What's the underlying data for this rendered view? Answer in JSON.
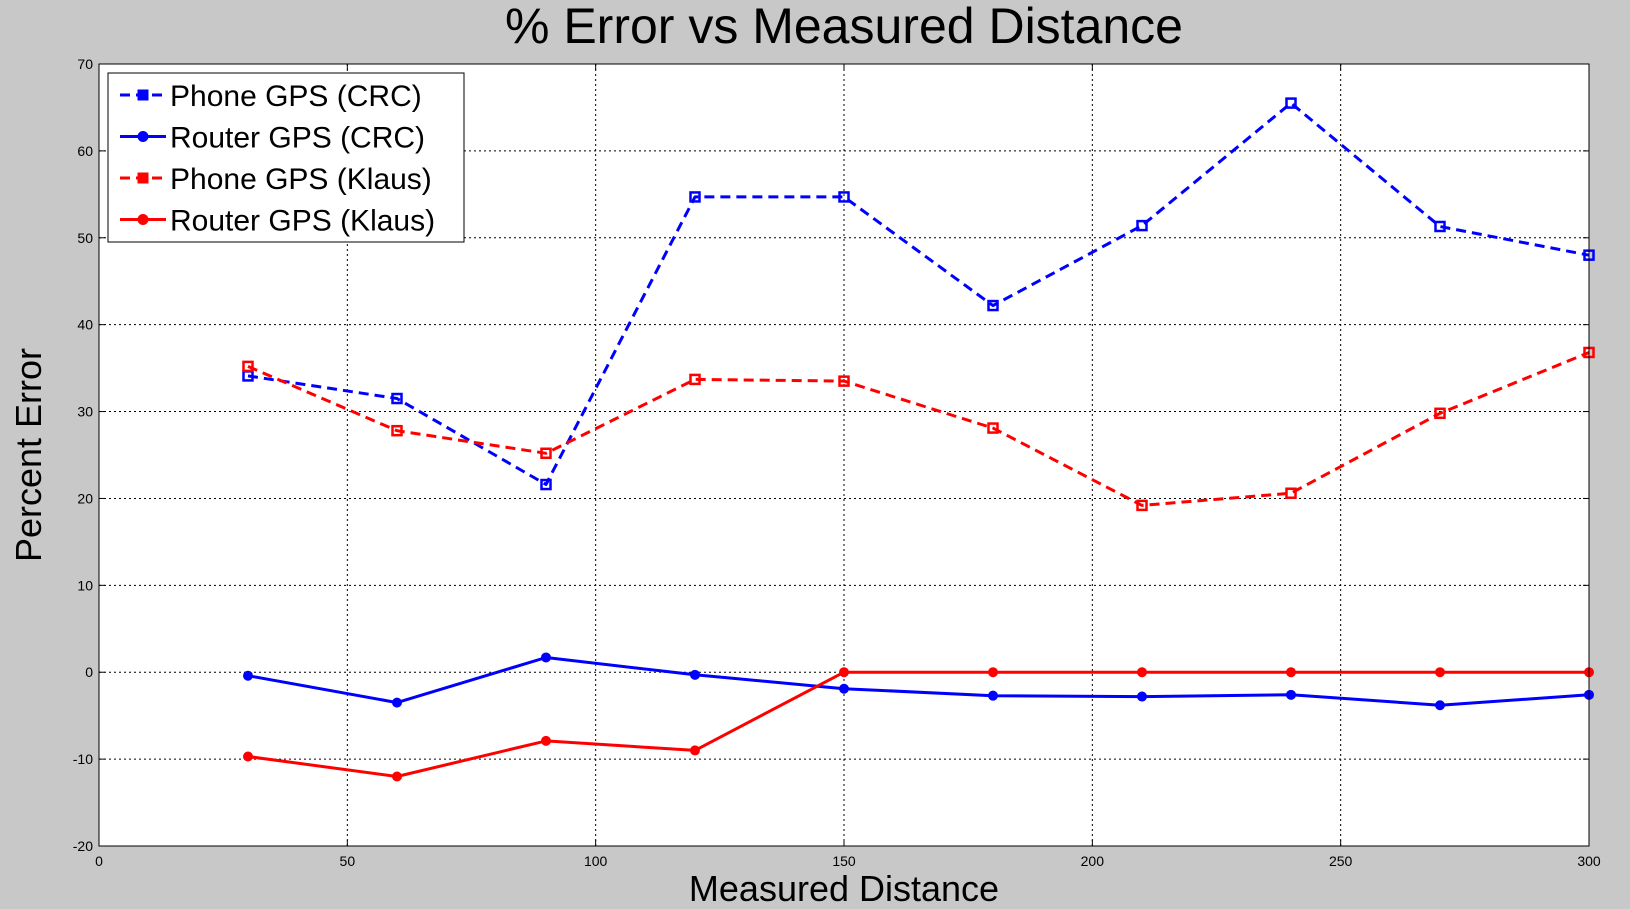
{
  "chart_data": {
    "type": "line",
    "title": "% Error vs Measured Distance",
    "xlabel": "Measured Distance",
    "ylabel": "Percent Error",
    "xlim": [
      0,
      300
    ],
    "ylim": [
      -20,
      70
    ],
    "x_ticks": [
      0,
      50,
      100,
      150,
      200,
      250,
      300
    ],
    "y_ticks": [
      -20,
      -10,
      0,
      10,
      20,
      30,
      40,
      50,
      60,
      70
    ],
    "grid": true,
    "legend_position": "top-left",
    "x": [
      30,
      60,
      90,
      120,
      150,
      180,
      210,
      240,
      270,
      300
    ],
    "series": [
      {
        "name": "Phone GPS (CRC)",
        "color": "#0000ff",
        "line_style": "dashed",
        "marker": "square",
        "values": [
          34.1,
          31.5,
          21.6,
          54.7,
          54.7,
          42.2,
          51.4,
          65.5,
          51.3,
          48.0
        ]
      },
      {
        "name": "Router GPS (CRC)",
        "color": "#0000ff",
        "line_style": "solid",
        "marker": "circle",
        "values": [
          -0.4,
          -3.5,
          1.7,
          -0.3,
          -1.9,
          -2.7,
          -2.8,
          -2.6,
          -3.8,
          -2.6
        ]
      },
      {
        "name": "Phone GPS (Klaus)",
        "color": "#ff0000",
        "line_style": "dashed",
        "marker": "square",
        "values": [
          35.2,
          27.8,
          25.2,
          33.7,
          33.5,
          28.1,
          19.2,
          20.6,
          29.8,
          36.8
        ]
      },
      {
        "name": "Router GPS (Klaus)",
        "color": "#ff0000",
        "line_style": "solid",
        "marker": "circle",
        "values": [
          -9.7,
          -12.0,
          -7.9,
          -9.0,
          0.0,
          0.0,
          0.0,
          0.0,
          0.0,
          0.0
        ]
      }
    ]
  }
}
